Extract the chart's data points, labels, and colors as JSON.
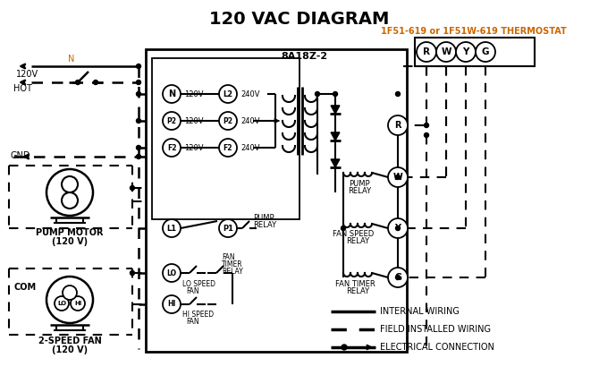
{
  "title": "120 VAC DIAGRAM",
  "title_fontsize": 14,
  "background_color": "#ffffff",
  "thermostat_label": "1F51-619 or 1F51W-619 THERMOSTAT",
  "box8a_label": "8A18Z-2",
  "orange_color": "#cc6600",
  "black": "#000000",
  "pump_motor_label1": "PUMP MOTOR",
  "pump_motor_label2": "(120 V)",
  "fan_label1": "2-SPEED FAN",
  "fan_label2": "(120 V)",
  "com_label": "COM",
  "gnd_label": "GND",
  "n_label": "N",
  "v120_label": "120V",
  "hot_label": "HOT"
}
